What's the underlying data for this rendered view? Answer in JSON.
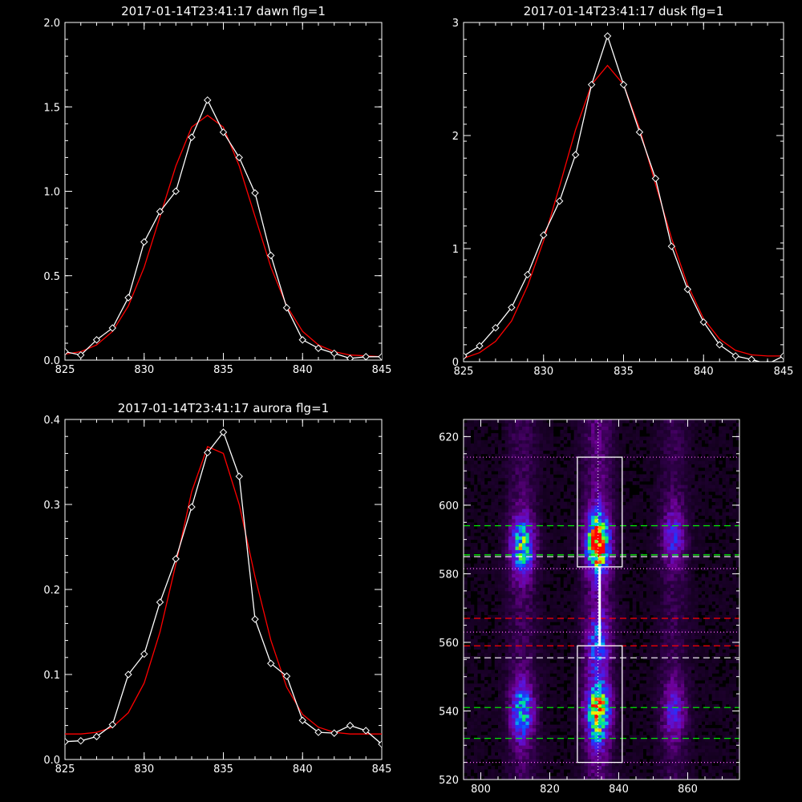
{
  "chart_data": [
    {
      "type": "line",
      "title": "2017-01-14T23:41:17 dawn flg=1",
      "xlabel": "",
      "ylabel": "",
      "xlim": [
        825,
        845
      ],
      "ylim": [
        0,
        2.0
      ],
      "x_ticks": [
        "825",
        "830",
        "835",
        "840",
        "845"
      ],
      "y_ticks": [
        "0.0",
        "0.5",
        "1.0",
        "1.5",
        "2.0"
      ],
      "y_tick_values": [
        0,
        0.5,
        1.0,
        1.5,
        2.0
      ],
      "series": [
        {
          "color": "#ffffff",
          "marker": "diamond",
          "x": [
            825,
            826,
            827,
            828,
            829,
            830,
            831,
            832,
            833,
            834,
            835,
            836,
            837,
            838,
            839,
            840,
            841,
            842,
            843,
            844,
            845
          ],
          "y": [
            0.05,
            0.03,
            0.12,
            0.19,
            0.37,
            0.7,
            0.88,
            1.0,
            1.32,
            1.54,
            1.35,
            1.2,
            0.99,
            0.62,
            0.31,
            0.12,
            0.07,
            0.04,
            0.01,
            0.02,
            0.02
          ]
        },
        {
          "color": "#ff0000",
          "marker": "none",
          "x": [
            825,
            826,
            827,
            828,
            829,
            830,
            831,
            832,
            833,
            834,
            835,
            836,
            837,
            838,
            839,
            840,
            841,
            842,
            843,
            844,
            845
          ],
          "y": [
            0.035,
            0.05,
            0.09,
            0.17,
            0.32,
            0.55,
            0.85,
            1.15,
            1.38,
            1.45,
            1.38,
            1.15,
            0.85,
            0.55,
            0.32,
            0.17,
            0.09,
            0.05,
            0.03,
            0.025,
            0.02
          ]
        }
      ]
    },
    {
      "type": "line",
      "title": "2017-01-14T23:41:17 dusk flg=1",
      "xlabel": "",
      "ylabel": "",
      "xlim": [
        825,
        845
      ],
      "ylim": [
        0,
        3.0
      ],
      "x_ticks": [
        "825",
        "830",
        "835",
        "840",
        "845"
      ],
      "y_ticks": [
        "0",
        "1",
        "2",
        "3"
      ],
      "y_tick_values": [
        0,
        1,
        2,
        3
      ],
      "series": [
        {
          "color": "#ffffff",
          "marker": "diamond",
          "x": [
            825,
            826,
            827,
            828,
            829,
            830,
            831,
            832,
            833,
            834,
            835,
            836,
            837,
            838,
            839,
            840,
            841,
            842,
            843,
            844,
            845
          ],
          "y": [
            0.05,
            0.14,
            0.3,
            0.48,
            0.77,
            1.12,
            1.42,
            1.83,
            2.45,
            2.88,
            2.45,
            2.03,
            1.62,
            1.02,
            0.64,
            0.35,
            0.15,
            0.05,
            0.02,
            -0.02,
            0.05
          ]
        },
        {
          "color": "#ff0000",
          "marker": "none",
          "x": [
            825,
            826,
            827,
            828,
            829,
            830,
            831,
            832,
            833,
            834,
            835,
            836,
            837,
            838,
            839,
            840,
            841,
            842,
            843,
            844,
            845
          ],
          "y": [
            0.03,
            0.08,
            0.18,
            0.36,
            0.67,
            1.07,
            1.55,
            2.05,
            2.45,
            2.62,
            2.45,
            2.06,
            1.57,
            1.09,
            0.68,
            0.38,
            0.2,
            0.1,
            0.06,
            0.05,
            0.05
          ]
        }
      ]
    },
    {
      "type": "line",
      "title": "2017-01-14T23:41:17 aurora flg=1",
      "xlabel": "",
      "ylabel": "",
      "xlim": [
        825,
        845
      ],
      "ylim": [
        0,
        0.4
      ],
      "x_ticks": [
        "825",
        "830",
        "835",
        "840",
        "845"
      ],
      "y_ticks": [
        "0.0",
        "0.1",
        "0.2",
        "0.3",
        "0.4"
      ],
      "y_tick_values": [
        0,
        0.1,
        0.2,
        0.3,
        0.4
      ],
      "series": [
        {
          "color": "#ffffff",
          "marker": "diamond",
          "x": [
            825,
            826,
            827,
            828,
            829,
            830,
            831,
            832,
            833,
            834,
            835,
            836,
            837,
            838,
            839,
            840,
            841,
            842,
            843,
            844,
            845
          ],
          "y": [
            0.021,
            0.022,
            0.027,
            0.041,
            0.1,
            0.124,
            0.185,
            0.236,
            0.297,
            0.361,
            0.385,
            0.333,
            0.165,
            0.113,
            0.098,
            0.046,
            0.032,
            0.031,
            0.04,
            0.034,
            0.018
          ]
        },
        {
          "color": "#ff0000",
          "marker": "none",
          "x": [
            825,
            826,
            827,
            828,
            829,
            830,
            831,
            832,
            833,
            834,
            835,
            836,
            837,
            838,
            839,
            840,
            841,
            842,
            843,
            844,
            845
          ],
          "y": [
            0.03,
            0.03,
            0.032,
            0.038,
            0.055,
            0.09,
            0.15,
            0.23,
            0.315,
            0.368,
            0.36,
            0.3,
            0.215,
            0.14,
            0.085,
            0.053,
            0.038,
            0.032,
            0.03,
            0.03,
            0.03
          ]
        }
      ]
    },
    {
      "type": "heatmap",
      "title": "",
      "xlabel": "",
      "ylabel": "",
      "xlim": [
        795,
        875
      ],
      "ylim": [
        520,
        625
      ],
      "x_ticks": [
        "800",
        "820",
        "840",
        "860"
      ],
      "x_tick_values": [
        800,
        820,
        840,
        860
      ],
      "y_ticks": [
        "520",
        "540",
        "560",
        "580",
        "600",
        "620"
      ],
      "y_tick_values": [
        520,
        540,
        560,
        580,
        600,
        620
      ],
      "colormap": "rainbow (black-purple-blue-cyan-green-yellow-red)",
      "hot_spots": [
        {
          "x": 812,
          "y": 588,
          "intensity": 0.62
        },
        {
          "x": 834,
          "y": 589,
          "intensity": 1.0
        },
        {
          "x": 856,
          "y": 591,
          "intensity": 0.3
        },
        {
          "x": 812,
          "y": 540,
          "intensity": 0.5
        },
        {
          "x": 834,
          "y": 540,
          "intensity": 0.85
        },
        {
          "x": 856,
          "y": 540,
          "intensity": 0.28
        },
        {
          "x": 834,
          "y": 560,
          "intensity": 0.35
        }
      ],
      "boxes": [
        {
          "x0": 828,
          "x1": 841,
          "y0": 582,
          "y1": 614,
          "color": "#ffffff"
        },
        {
          "x0": 828,
          "x1": 841,
          "y0": 525,
          "y1": 559,
          "color": "#ffffff"
        }
      ],
      "vertical_line": {
        "x": 834,
        "color": "#ffffff",
        "style": "dotted"
      },
      "horizontal_lines": [
        {
          "y": 614,
          "color": "#ff66ff",
          "style": "dotted"
        },
        {
          "y": 594,
          "color": "#00ff00",
          "style": "dashed"
        },
        {
          "y": 585.5,
          "color": "#00ff00",
          "style": "dashed"
        },
        {
          "y": 585,
          "color": "#ffffff",
          "style": "dashed"
        },
        {
          "y": 581.5,
          "color": "#ff66ff",
          "style": "dotted"
        },
        {
          "y": 567,
          "color": "#ff0000",
          "style": "dashed"
        },
        {
          "y": 563,
          "color": "#ff66ff",
          "style": "dotted"
        },
        {
          "y": 559,
          "color": "#ff0000",
          "style": "dashed"
        },
        {
          "y": 555.5,
          "color": "#ffffff",
          "style": "dashed"
        },
        {
          "y": 541,
          "color": "#00ff00",
          "style": "dashed"
        },
        {
          "y": 532,
          "color": "#00ff00",
          "style": "dashed"
        },
        {
          "y": 525,
          "color": "#ff66ff",
          "style": "dotted"
        }
      ]
    }
  ]
}
